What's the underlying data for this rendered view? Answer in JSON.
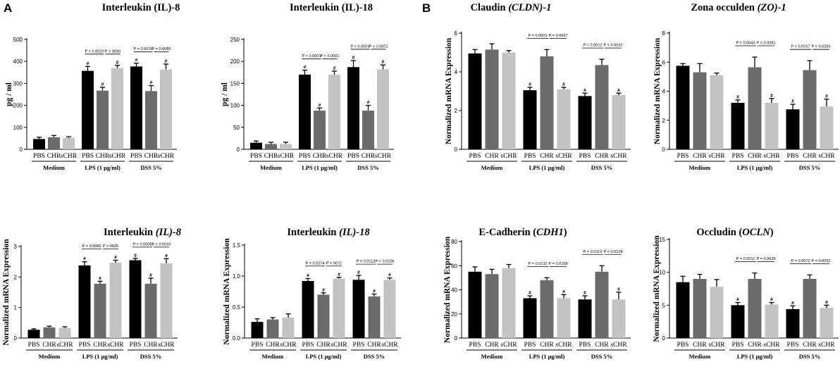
{
  "panel_labels": [
    "A",
    "B"
  ],
  "colors": {
    "PBS": "#000000",
    "CHR": "#6b6b6b",
    "sCHR": "#c3c3c3"
  },
  "chart_data": [
    {
      "type": "bar",
      "title": {
        "parts": [
          {
            "t": "Interleukin (IL)-8",
            "i": false
          }
        ]
      },
      "ylabel": "pg / ml",
      "ylim": [
        0,
        500
      ],
      "yticks": [
        0,
        100,
        200,
        300,
        400,
        500
      ],
      "groups": [
        "Medium",
        "LPS  (1 μg/ml)",
        "DSS 5%"
      ],
      "categories": [
        "PBS",
        "CHR",
        "sCHR"
      ],
      "values": [
        [
          47,
          55,
          52
        ],
        [
          357,
          267,
          370
        ],
        [
          377,
          265,
          363
        ]
      ],
      "errors": [
        [
          8,
          8,
          5
        ],
        [
          20,
          15,
          12
        ],
        [
          15,
          25,
          25
        ]
      ],
      "hash": [
        [
          false,
          false,
          false
        ],
        [
          true,
          true,
          true
        ],
        [
          true,
          true,
          true
        ]
      ],
      "pvalues": [
        [],
        [
          "P = 0.0020",
          "P = 0030"
        ],
        [
          "P = 0.0016",
          "P = 0.0085"
        ]
      ]
    },
    {
      "type": "bar",
      "title": {
        "parts": [
          {
            "t": "Interleukin (IL)-18",
            "i": false
          }
        ]
      },
      "ylabel": "pg / ml",
      "ylim": [
        0,
        250
      ],
      "yticks": [
        0,
        50,
        100,
        150,
        200,
        250
      ],
      "groups": [
        "Medium",
        "LPS  (1 μg/ml)",
        "DSS 5%"
      ],
      "categories": [
        "PBS",
        "CHR",
        "sCHR"
      ],
      "values": [
        [
          15,
          12,
          12
        ],
        [
          170,
          88,
          170
        ],
        [
          187,
          88,
          182
        ]
      ],
      "errors": [
        [
          4,
          4,
          4
        ],
        [
          10,
          6,
          8
        ],
        [
          15,
          12,
          10
        ]
      ],
      "hash": [
        [
          false,
          false,
          false
        ],
        [
          true,
          true,
          true
        ],
        [
          true,
          true,
          true
        ]
      ],
      "pvalues": [
        [],
        [
          "P < 0.0001",
          "P < 0.0001"
        ],
        [
          "P < 0.0001",
          "P < 0.0001"
        ]
      ]
    },
    {
      "type": "bar",
      "title": {
        "parts": [
          {
            "t": "Claudin ",
            "i": false
          },
          {
            "t": "(CLDN)-1",
            "i": true
          }
        ]
      },
      "ylabel": "Normalized mRNA Expression",
      "ylim": [
        0,
        6
      ],
      "yticks": [
        0,
        2,
        4,
        6
      ],
      "groups": [
        "Medium",
        "LPS  (1 μg/ml)",
        "DSS 5%"
      ],
      "categories": [
        "PBS",
        "CHR",
        "sCHR"
      ],
      "values": [
        [
          4.95,
          5.15,
          5.0
        ],
        [
          3.05,
          4.8,
          3.1
        ],
        [
          2.75,
          4.35,
          2.8
        ]
      ],
      "errors": [
        [
          0.2,
          0.3,
          0.1
        ],
        [
          0.15,
          0.35,
          0.1
        ],
        [
          0.15,
          0.3,
          0.1
        ]
      ],
      "hash": [
        [
          false,
          false,
          false
        ],
        [
          true,
          false,
          true
        ],
        [
          true,
          false,
          true
        ]
      ],
      "pvalues": [
        [],
        [
          "P = 0.0001",
          "P = 0.0067"
        ],
        [
          "P = 0.0012",
          "P = 0.0020"
        ]
      ]
    },
    {
      "type": "bar",
      "title": {
        "parts": [
          {
            "t": "Zona occulden ",
            "i": false
          },
          {
            "t": "(ZO)",
            "i": true
          },
          {
            "t": "-",
            "i": false
          },
          {
            "t": "1",
            "i": true
          }
        ]
      },
      "ylabel": "Normalized mRNA Expression",
      "ylim": [
        0,
        8
      ],
      "yticks": [
        0,
        2,
        4,
        6,
        8
      ],
      "groups": [
        "Medium",
        "LPS  (1 μg/ml)",
        "DSS 5%"
      ],
      "categories": [
        "PBS",
        "CHR",
        "sCHR"
      ],
      "values": [
        [
          5.75,
          5.3,
          5.1
        ],
        [
          3.2,
          5.65,
          3.2
        ],
        [
          2.75,
          5.45,
          2.95
        ]
      ],
      "errors": [
        [
          0.15,
          0.6,
          0.15
        ],
        [
          0.2,
          0.7,
          0.3
        ],
        [
          0.35,
          0.65,
          0.5
        ]
      ],
      "hash": [
        [
          false,
          false,
          false
        ],
        [
          true,
          false,
          true
        ],
        [
          true,
          false,
          true
        ]
      ],
      "pvalues": [
        [],
        [
          "P = 0.0043",
          "P = 0.0081"
        ],
        [
          "P = 0.0167",
          "P = 0.0293"
        ]
      ]
    },
    {
      "type": "bar",
      "title": {
        "parts": [
          {
            "t": "Interleukin ",
            "i": false
          },
          {
            "t": "(IL)-8",
            "i": true
          }
        ]
      },
      "ylabel": "Normalized mRNA Expression",
      "ylim": [
        0,
        3
      ],
      "yticks": [
        0,
        1,
        2,
        3
      ],
      "groups": [
        "Medium",
        "LPS  (1 μg/ml)",
        "DSS 5%"
      ],
      "categories": [
        "PBS",
        "CHR",
        "sCHR"
      ],
      "values": [
        [
          0.27,
          0.35,
          0.33
        ],
        [
          2.38,
          1.78,
          2.47
        ],
        [
          2.55,
          1.78,
          2.45
        ]
      ],
      "errors": [
        [
          0.03,
          0.04,
          0.04
        ],
        [
          0.12,
          0.08,
          0.08
        ],
        [
          0.06,
          0.18,
          0.15
        ]
      ],
      "hash": [
        [
          false,
          false,
          false
        ],
        [
          true,
          true,
          true
        ],
        [
          true,
          true,
          true
        ]
      ],
      "pvalues": [
        [],
        [
          "P = 0.0082",
          "P = 0025"
        ],
        [
          "P = 0.0008",
          "P = 0.0033"
        ]
      ]
    },
    {
      "type": "bar",
      "title": {
        "parts": [
          {
            "t": "Interleukin ",
            "i": false
          },
          {
            "t": "(IL)-18",
            "i": true
          }
        ]
      },
      "ylabel": "Normalized mRNA Expression",
      "ylim": [
        0,
        1.5
      ],
      "yticks": [
        0,
        0.5,
        1.0,
        1.5
      ],
      "ytick_labels": [
        "0.0",
        "0.5",
        "1.0",
        "1.5"
      ],
      "groups": [
        "Medium",
        "LPS  (1 μg/ml)",
        "DSS 5%"
      ],
      "categories": [
        "PBS",
        "CHR",
        "sCHR"
      ],
      "values": [
        [
          0.26,
          0.3,
          0.33
        ],
        [
          0.92,
          0.7,
          0.96
        ],
        [
          0.94,
          0.67,
          0.94
        ]
      ],
      "errors": [
        [
          0.05,
          0.03,
          0.06
        ],
        [
          0.04,
          0.03,
          0.02
        ],
        [
          0.07,
          0.04,
          0.03
        ]
      ],
      "hash": [
        [
          false,
          false,
          false
        ],
        [
          true,
          true,
          true
        ],
        [
          true,
          true,
          true
        ]
      ],
      "pvalues": [
        [],
        [
          "P = 0.0274",
          "P = 0071"
        ],
        [
          "P = 0.0113",
          "P = 0.0106"
        ]
      ]
    },
    {
      "type": "bar",
      "title": {
        "parts": [
          {
            "t": "E-Cadherin (",
            "i": false
          },
          {
            "t": "CDH1",
            "i": true
          },
          {
            "t": ")",
            "i": false
          }
        ]
      },
      "ylabel": "Normalized mRNA Expression",
      "ylim": [
        0,
        80
      ],
      "yticks": [
        0,
        20,
        40,
        60,
        80
      ],
      "groups": [
        "Medium",
        "LPS  (1 μg/ml)",
        "DSS 5%"
      ],
      "categories": [
        "PBS",
        "CHR",
        "sCHR"
      ],
      "values": [
        [
          55,
          53,
          58
        ],
        [
          33,
          48,
          33
        ],
        [
          32,
          55,
          32
        ]
      ],
      "errors": [
        [
          4,
          4,
          3
        ],
        [
          2,
          2,
          3
        ],
        [
          3,
          5,
          6
        ]
      ],
      "hash": [
        [
          false,
          false,
          false
        ],
        [
          true,
          false,
          true
        ],
        [
          true,
          false,
          true
        ]
      ],
      "pvalues": [
        [],
        [
          "P = 0.0132",
          "P = 0.0168"
        ],
        [
          "P = 0.0119",
          "P = 0.0128"
        ]
      ]
    },
    {
      "type": "bar",
      "title": {
        "parts": [
          {
            "t": "Occludin (",
            "i": false
          },
          {
            "t": "OCLN",
            "i": true
          },
          {
            "t": ")",
            "i": false
          }
        ]
      },
      "ylabel": "Normalized mRNA Expression",
      "ylim": [
        0,
        15
      ],
      "yticks": [
        0,
        5,
        10,
        15
      ],
      "groups": [
        "Medium",
        "LPS  (1 μg/ml)",
        "DSS 5%"
      ],
      "categories": [
        "PBS",
        "CHR",
        "sCHR"
      ],
      "values": [
        [
          8.5,
          9.0,
          7.8
        ],
        [
          5.0,
          9.0,
          5.1
        ],
        [
          4.4,
          9.0,
          4.6
        ]
      ],
      "errors": [
        [
          0.9,
          0.7,
          1.1
        ],
        [
          0.4,
          0.9,
          0.3
        ],
        [
          0.5,
          0.6,
          0.4
        ]
      ],
      "hash": [
        [
          false,
          false,
          false
        ],
        [
          true,
          false,
          true
        ],
        [
          true,
          false,
          true
        ]
      ],
      "pvalues": [
        [],
        [
          "P = 0.0011",
          "P = 0.0029"
        ],
        [
          "P = 0.0072",
          "P = 0.0052"
        ]
      ]
    }
  ]
}
